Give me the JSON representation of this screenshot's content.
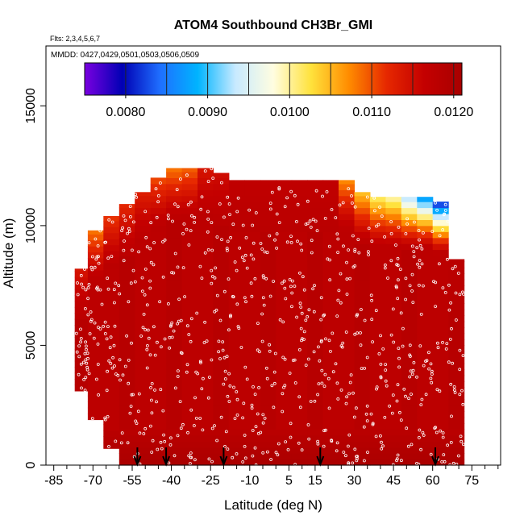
{
  "chart_data": {
    "type": "heatmap",
    "title": "ATOM4 Southbound CH3Br_GMI",
    "subtitle_flights": "Flts: 2,3,4,5,6,7",
    "subtitle_dates": "MMDD: 0427,0429,0501,0503,0506,0509",
    "xlabel": "Latitude (deg N)",
    "ylabel": "Altitude (m)",
    "xlim": [
      -88,
      86
    ],
    "ylim": [
      0,
      17500
    ],
    "x_ticks": [
      -85,
      -70,
      -55,
      -40,
      -25,
      -10,
      5,
      15,
      30,
      45,
      60,
      75
    ],
    "x_minor_ticks": [
      -80,
      -75,
      -65,
      -60,
      -50,
      -45,
      -35,
      -30,
      -20,
      -15,
      -5,
      0,
      10,
      20,
      25,
      35,
      40,
      50,
      55,
      65,
      70,
      80,
      85
    ],
    "y_ticks": [
      0,
      5000,
      10000,
      15000
    ],
    "colorbar": {
      "min": 0.0075,
      "max": 0.0121,
      "ticks": [
        0.008,
        0.009,
        0.01,
        0.011,
        0.012
      ],
      "tick_labels": [
        "0.0080",
        "0.0090",
        "0.0100",
        "0.0110",
        "0.0120"
      ],
      "boundaries": [
        0.0075,
        0.008,
        0.0085,
        0.009,
        0.0095,
        0.01,
        0.0105,
        0.011,
        0.0115,
        0.012,
        0.0121
      ],
      "colors": [
        "#7a00e0",
        "#0000b4",
        "#1f6fff",
        "#00b4ff",
        "#c8eaff",
        "#fffde0",
        "#ffe23c",
        "#ff8c00",
        "#e62800",
        "#c40000",
        "#a80000"
      ]
    },
    "arrow_latitudes": [
      -53,
      -42,
      -20,
      17,
      61
    ],
    "profiles": [
      {
        "lat": -74,
        "top": 8200,
        "bottom": 3100,
        "upper": 0.0114
      },
      {
        "lat": -69,
        "top": 9800,
        "bottom": 1900,
        "upper": 0.0108
      },
      {
        "lat": -63,
        "top": 10400,
        "bottom": 700,
        "upper": 0.0111
      },
      {
        "lat": -57,
        "top": 10900,
        "bottom": 0,
        "upper": 0.0112
      },
      {
        "lat": -51,
        "top": 11400,
        "bottom": 0,
        "upper": 0.0113
      },
      {
        "lat": -45,
        "top": 12000,
        "bottom": 0,
        "upper": 0.011
      },
      {
        "lat": -39,
        "top": 12400,
        "bottom": 0,
        "upper": 0.0108
      },
      {
        "lat": -33,
        "top": 12400,
        "bottom": 0,
        "upper": 0.0109
      },
      {
        "lat": -27,
        "top": 12400,
        "bottom": 0,
        "upper": 0.0114
      },
      {
        "lat": -21,
        "top": 12200,
        "bottom": 0,
        "upper": 0.0115
      },
      {
        "lat": -15,
        "top": 11900,
        "bottom": 0,
        "upper": 0.0117
      },
      {
        "lat": -9,
        "top": 11900,
        "bottom": 0,
        "upper": 0.0117
      },
      {
        "lat": -3,
        "top": 11900,
        "bottom": 0,
        "upper": 0.0117
      },
      {
        "lat": 3,
        "top": 11900,
        "bottom": 0,
        "upper": 0.0117
      },
      {
        "lat": 9,
        "top": 11900,
        "bottom": 0,
        "upper": 0.0117
      },
      {
        "lat": 15,
        "top": 11900,
        "bottom": 0,
        "upper": 0.0117
      },
      {
        "lat": 21,
        "top": 11900,
        "bottom": 0,
        "upper": 0.0117
      },
      {
        "lat": 27,
        "top": 11900,
        "bottom": 0,
        "upper": 0.0107
      },
      {
        "lat": 33,
        "top": 11400,
        "bottom": 0,
        "upper": 0.0104
      },
      {
        "lat": 39,
        "top": 11200,
        "bottom": 0,
        "upper": 0.0101
      },
      {
        "lat": 45,
        "top": 11200,
        "bottom": 0,
        "upper": 0.0099
      },
      {
        "lat": 51,
        "top": 11200,
        "bottom": 0,
        "upper": 0.0092
      },
      {
        "lat": 57,
        "top": 11200,
        "bottom": 0,
        "upper": 0.0086
      },
      {
        "lat": 63,
        "top": 11000,
        "bottom": 0,
        "upper": 0.008
      },
      {
        "lat": 69,
        "top": 8600,
        "bottom": 0,
        "upper": 0.0118
      }
    ]
  }
}
